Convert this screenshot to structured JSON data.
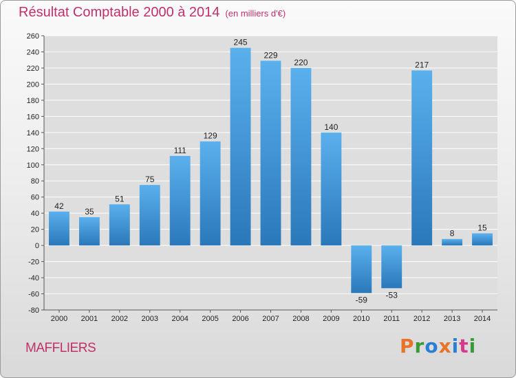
{
  "title": "Résultat Comptable 2000 à 2014",
  "subtitle": "(en milliers d'€)",
  "commune": "MAFFLIERS",
  "logo_letters": [
    "P",
    "r",
    "o",
    "x",
    "i",
    "t",
    "i"
  ],
  "logo_colors": [
    "#e8742a",
    "#3a9a3a",
    "#2a7fd4",
    "#e8742a",
    "#2a7fd4",
    "#d63a8a",
    "#3a9a3a"
  ],
  "colors": {
    "bar_light": "#5ab0ec",
    "bar_dark": "#2a78bb",
    "grid": "#ffffff",
    "title": "#c0306a"
  },
  "chart_data": {
    "type": "bar",
    "title": "Résultat Comptable 2000 à 2014",
    "subtitle": "(en milliers d'€)",
    "xlabel": "",
    "ylabel": "",
    "categories": [
      "2000",
      "2001",
      "2002",
      "2003",
      "2004",
      "2005",
      "2006",
      "2007",
      "2008",
      "2009",
      "2010",
      "2011",
      "2012",
      "2013",
      "2014"
    ],
    "values": [
      42,
      35,
      51,
      75,
      111,
      129,
      245,
      229,
      220,
      140,
      -59,
      -53,
      217,
      8,
      15
    ],
    "ylim": [
      -80,
      260
    ],
    "yticks": [
      260,
      240,
      220,
      200,
      180,
      160,
      140,
      120,
      100,
      80,
      60,
      40,
      20,
      0,
      -20,
      -40,
      -60,
      -80
    ],
    "grid": true
  }
}
